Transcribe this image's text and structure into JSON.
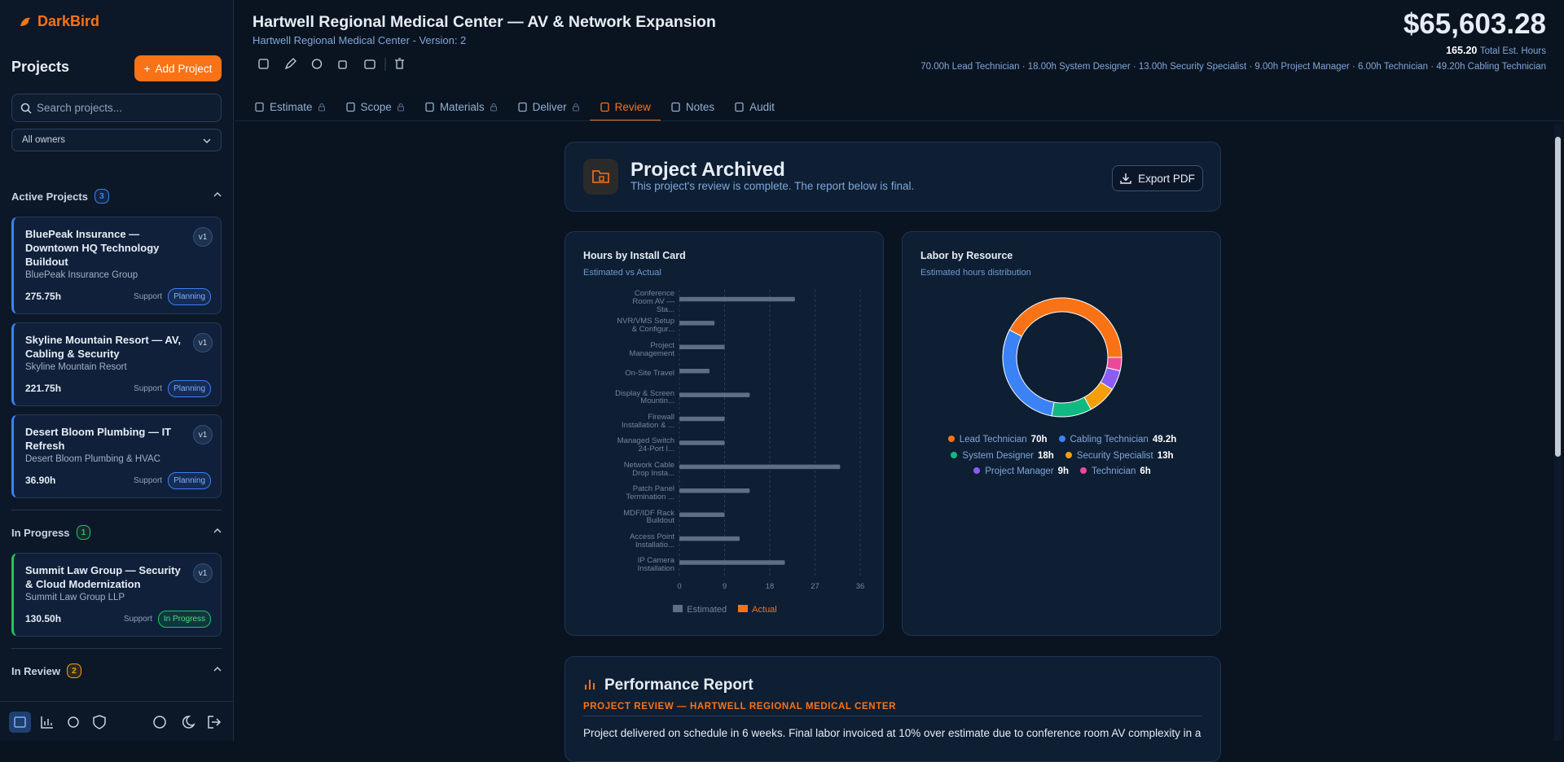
{
  "sidebar": {
    "brand": "DarkBird",
    "heading": "Projects",
    "add_button": "Add Project",
    "search_placeholder": "Search projects...",
    "owner_filter": "All owners",
    "groups": [
      {
        "name": "Active Projects",
        "count": 3,
        "color": "#3b82f6",
        "projects": [
          {
            "title": "BluePeak Insurance — Downtown HQ Technology Buildout",
            "client": "BluePeak Insurance Group",
            "hours": "275.75h",
            "kind": "Support",
            "status": "Planning",
            "version": "v1"
          },
          {
            "title": "Skyline Mountain Resort — AV, Cabling & Security",
            "client": "Skyline Mountain Resort",
            "hours": "221.75h",
            "kind": "Support",
            "status": "Planning",
            "version": "v1"
          },
          {
            "title": "Desert Bloom Plumbing — IT Refresh",
            "client": "Desert Bloom Plumbing & HVAC",
            "hours": "36.90h",
            "kind": "Support",
            "status": "Planning",
            "version": "v1"
          }
        ]
      },
      {
        "name": "In Progress",
        "count": 1,
        "color": "#22c55e",
        "projects": [
          {
            "title": "Summit Law Group — Security & Cloud Modernization",
            "client": "Summit Law Group LLP",
            "hours": "130.50h",
            "kind": "Support",
            "status": "In Progress",
            "version": "v1"
          }
        ]
      },
      {
        "name": "In Review",
        "count": 2,
        "color": "#f59e0b",
        "projects": []
      }
    ]
  },
  "header": {
    "title": "Hartwell Regional Medical Center — AV & Network Expansion",
    "subtitle": "Hartwell Regional Medical Center - Version: 2",
    "total": "$65,603.28",
    "hours": "165.20",
    "hours_label": "Total Est. Hours",
    "breakdown": "70.00h Lead Technician · 18.00h System Designer · 13.00h Security Specialist · 9.00h Project Manager · 6.00h Technician · 49.20h Cabling Technician"
  },
  "tabs": [
    {
      "label": "Estimate",
      "locked": true,
      "active": false
    },
    {
      "label": "Scope",
      "locked": true,
      "active": false
    },
    {
      "label": "Materials",
      "locked": true,
      "active": false
    },
    {
      "label": "Deliver",
      "locked": true,
      "active": false
    },
    {
      "label": "Review",
      "locked": false,
      "active": true
    },
    {
      "label": "Notes",
      "locked": false,
      "active": false
    },
    {
      "label": "Audit",
      "locked": false,
      "active": false
    }
  ],
  "archived": {
    "title": "Project Archived",
    "text": "This project's review is complete. The report below is final.",
    "button": "Export PDF"
  },
  "hours_chart": {
    "type": "bar",
    "title": "Hours by Install Card",
    "subtitle": "Estimated vs Actual",
    "categories": [
      "Conference Room AV — Sta...",
      "NVR/VMS Setup & Configur...",
      "Project Management",
      "On-Site Travel",
      "Display & Screen Mountin...",
      "Firewall Installation & ...",
      "Managed Switch 24-Port I...",
      "Network Cable Drop Insta...",
      "Patch Panel Termination ...",
      "MDF/IDF Rack Buildout",
      "Access Point Installatio...",
      "IP Camera Installation"
    ],
    "series": [
      {
        "name": "Estimated",
        "color": "#5f6e82",
        "values": [
          23,
          7,
          9,
          6,
          14,
          9,
          9,
          32,
          14,
          9,
          12,
          21
        ]
      },
      {
        "name": "Actual",
        "color": "#f97316",
        "values": [
          null,
          null,
          null,
          null,
          null,
          null,
          null,
          null,
          null,
          null,
          null,
          null
        ]
      }
    ],
    "xlim": [
      0,
      36
    ],
    "xticks": [
      0,
      9,
      18,
      27,
      36
    ],
    "grid": true
  },
  "labor_chart": {
    "type": "pie",
    "title": "Labor by Resource",
    "subtitle": "Estimated hours distribution",
    "categories": [
      "Lead Technician",
      "Cabling Technician",
      "System Designer",
      "Security Specialist",
      "Project Manager",
      "Technician"
    ],
    "values": [
      70,
      49.2,
      18,
      13,
      9,
      6
    ],
    "value_labels": [
      "70h",
      "49.2h",
      "18h",
      "13h",
      "9h",
      "6h"
    ],
    "colors": [
      "#f97316",
      "#3b82f6",
      "#10b981",
      "#f59e0b",
      "#8b5cf6",
      "#ec4899"
    ]
  },
  "report": {
    "title": "Performance Report",
    "subtitle": "PROJECT REVIEW — HARTWELL REGIONAL MEDICAL CENTER",
    "text": "Project delivered on schedule in 6 weeks. Final labor invoiced at 10% over estimate due to conference room AV complexity in a"
  }
}
